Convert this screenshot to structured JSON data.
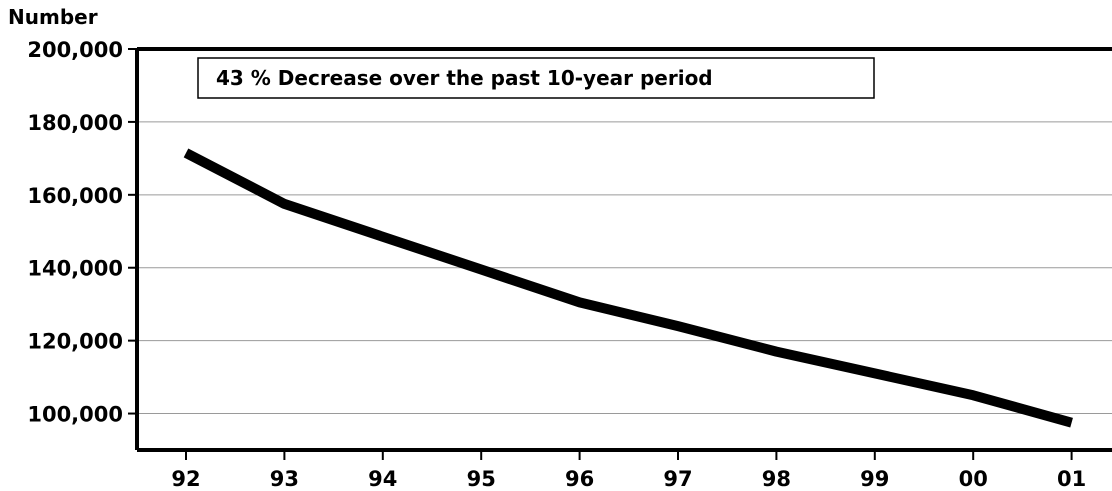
{
  "chart_data": {
    "type": "line",
    "title": "",
    "xlabel": "",
    "ylabel": "Number",
    "annotation": "43 % Decrease over the past 10-year period",
    "categories": [
      "92",
      "93",
      "94",
      "95",
      "96",
      "97",
      "98",
      "99",
      "00",
      "01"
    ],
    "y_ticks": [
      "100,000",
      "120,000",
      "140,000",
      "160,000",
      "180,000",
      "200,000"
    ],
    "y_tick_values": [
      100000,
      120000,
      140000,
      160000,
      180000,
      200000
    ],
    "ylim": [
      90000,
      200000
    ],
    "grid": true,
    "line_color": "#000000",
    "series": [
      {
        "values": [
          171500,
          157500,
          148500,
          139500,
          130500,
          124000,
          117000,
          111000,
          105000,
          97500
        ]
      }
    ]
  }
}
